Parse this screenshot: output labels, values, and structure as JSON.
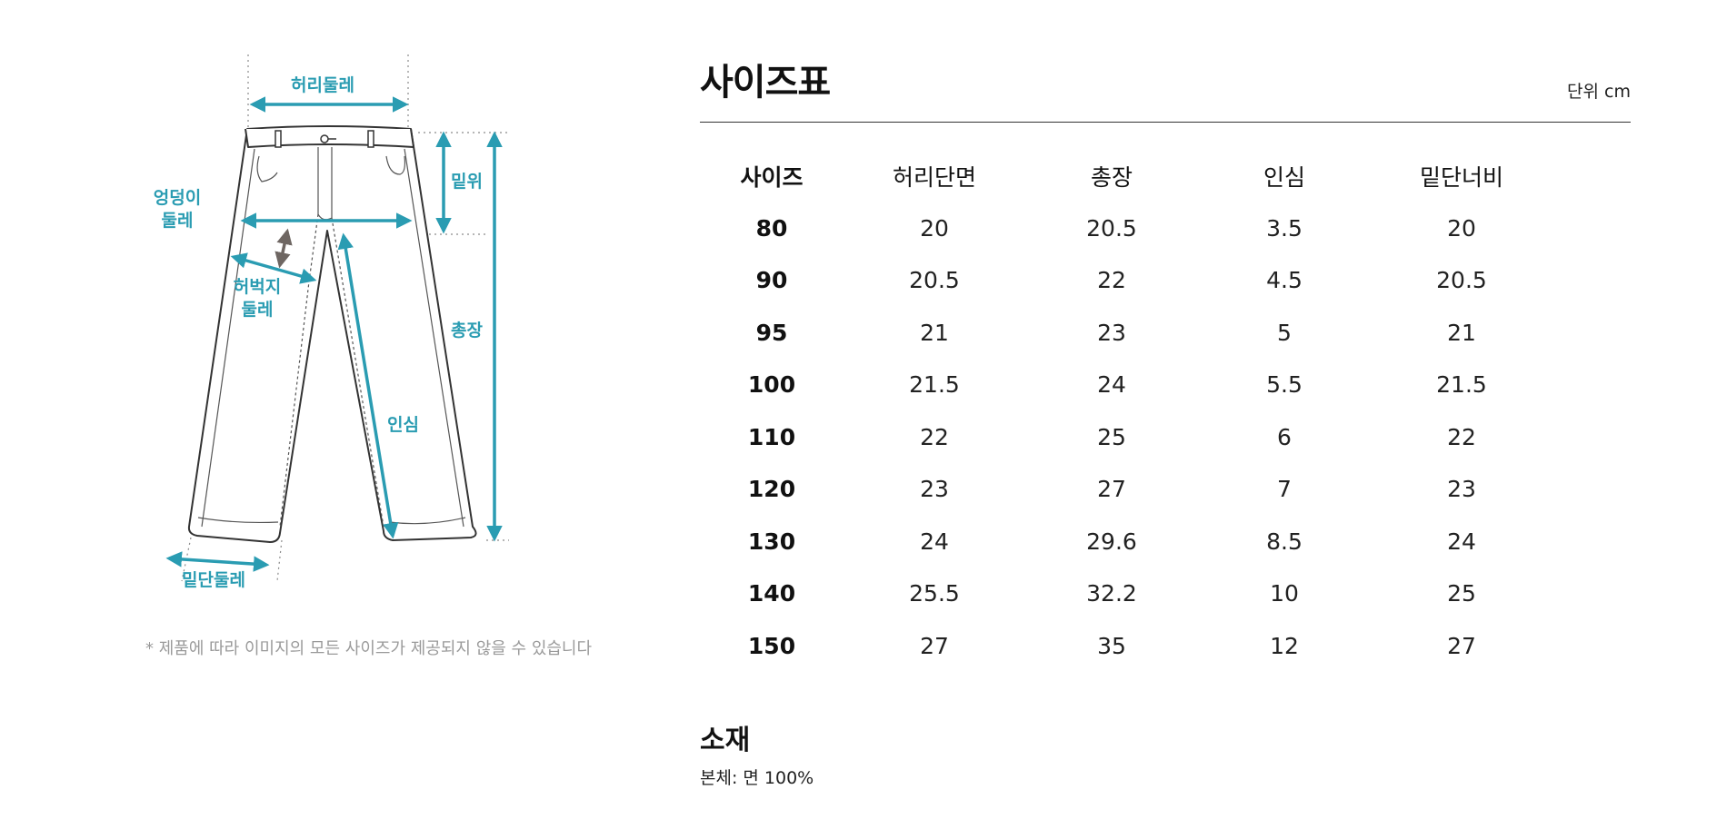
{
  "illustration": {
    "labels": {
      "waist": "허리둘레",
      "hip": "엉덩이\n둘레",
      "rise": "밑위",
      "thigh": "허벅지\n둘레",
      "length": "총장",
      "inseam": "인심",
      "hem": "밑단둘레"
    },
    "note": "* 제품에 따라 이미지의 모든 사이즈가 제공되지 않을 수 있습니다"
  },
  "size_chart": {
    "title": "사이즈표",
    "unit": "단위 cm",
    "columns": [
      "사이즈",
      "허리단면",
      "총장",
      "인심",
      "밑단너비"
    ],
    "rows": [
      [
        "80",
        "20",
        "20.5",
        "3.5",
        "20"
      ],
      [
        "90",
        "20.5",
        "22",
        "4.5",
        "20.5"
      ],
      [
        "95",
        "21",
        "23",
        "5",
        "21"
      ],
      [
        "100",
        "21.5",
        "24",
        "5.5",
        "21.5"
      ],
      [
        "110",
        "22",
        "25",
        "6",
        "22"
      ],
      [
        "120",
        "23",
        "27",
        "7",
        "23"
      ],
      [
        "130",
        "24",
        "29.6",
        "8.5",
        "24"
      ],
      [
        "140",
        "25.5",
        "32.2",
        "10",
        "25"
      ],
      [
        "150",
        "27",
        "35",
        "12",
        "27"
      ]
    ]
  },
  "material": {
    "title": "소재",
    "body": "본체: 면 100%"
  },
  "colors": {
    "accent": "#2a9cb2",
    "arrow_gray": "#6e6662"
  }
}
